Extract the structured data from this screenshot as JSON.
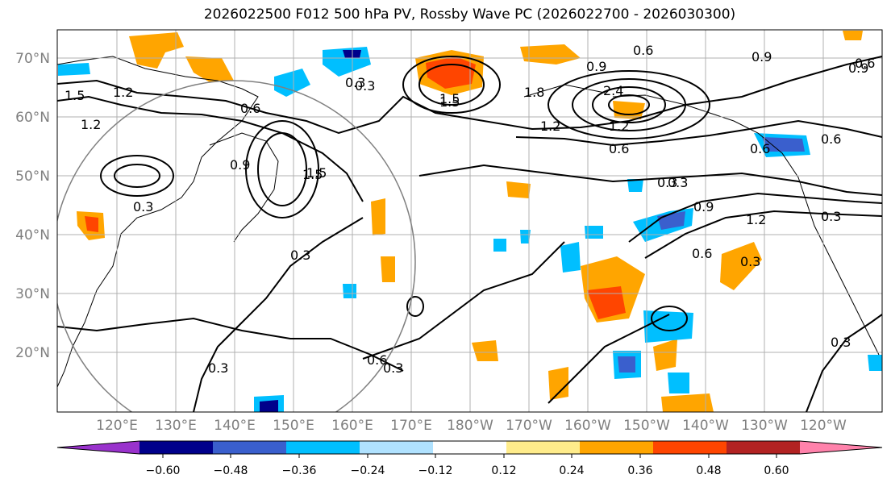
{
  "title": "2026022500 F012 500 hPa PV, Rossby Wave PC (2026022700 - 2026030300)",
  "axes": {
    "lat_labels": [
      "70°N",
      "60°N",
      "50°N",
      "40°N",
      "30°N",
      "20°N"
    ],
    "lon_labels": [
      "120°E",
      "130°E",
      "140°E",
      "150°E",
      "160°E",
      "170°E",
      "180°W",
      "170°W",
      "160°W",
      "150°W",
      "140°W",
      "130°W",
      "120°W"
    ]
  },
  "colorbar": {
    "colors": [
      "#9932cc",
      "#00008b",
      "#3a5fcd",
      "#00bfff",
      "#b0e2ff",
      "#ffffff",
      "#ffec8b",
      "#ffa500",
      "#ff4500",
      "#b22222",
      "#ff82ab"
    ],
    "tick_labels": [
      "−0.60",
      "−0.48",
      "−0.36",
      "−0.24",
      "−0.12",
      "0.12",
      "0.24",
      "0.36",
      "0.48",
      "0.60"
    ]
  },
  "contour_labels": [
    "0.6",
    "0.9",
    "0.9",
    "0.9",
    "0.3",
    "0.6",
    "1.5",
    "1.2",
    "1.2",
    "2.4",
    "1.8",
    "1.5",
    "1.2",
    "0.6",
    "0.3",
    "0.6",
    "0.3",
    "0.3",
    "1.5",
    "0.9",
    "0.3",
    "0.6",
    "0.3",
    "0.3",
    "0.9",
    "0.6",
    "1.2",
    "0.3",
    "0.3",
    "0.6",
    "0.6",
    "0.3",
    "1.5",
    "1.2",
    "1.5",
    "0.3"
  ]
}
